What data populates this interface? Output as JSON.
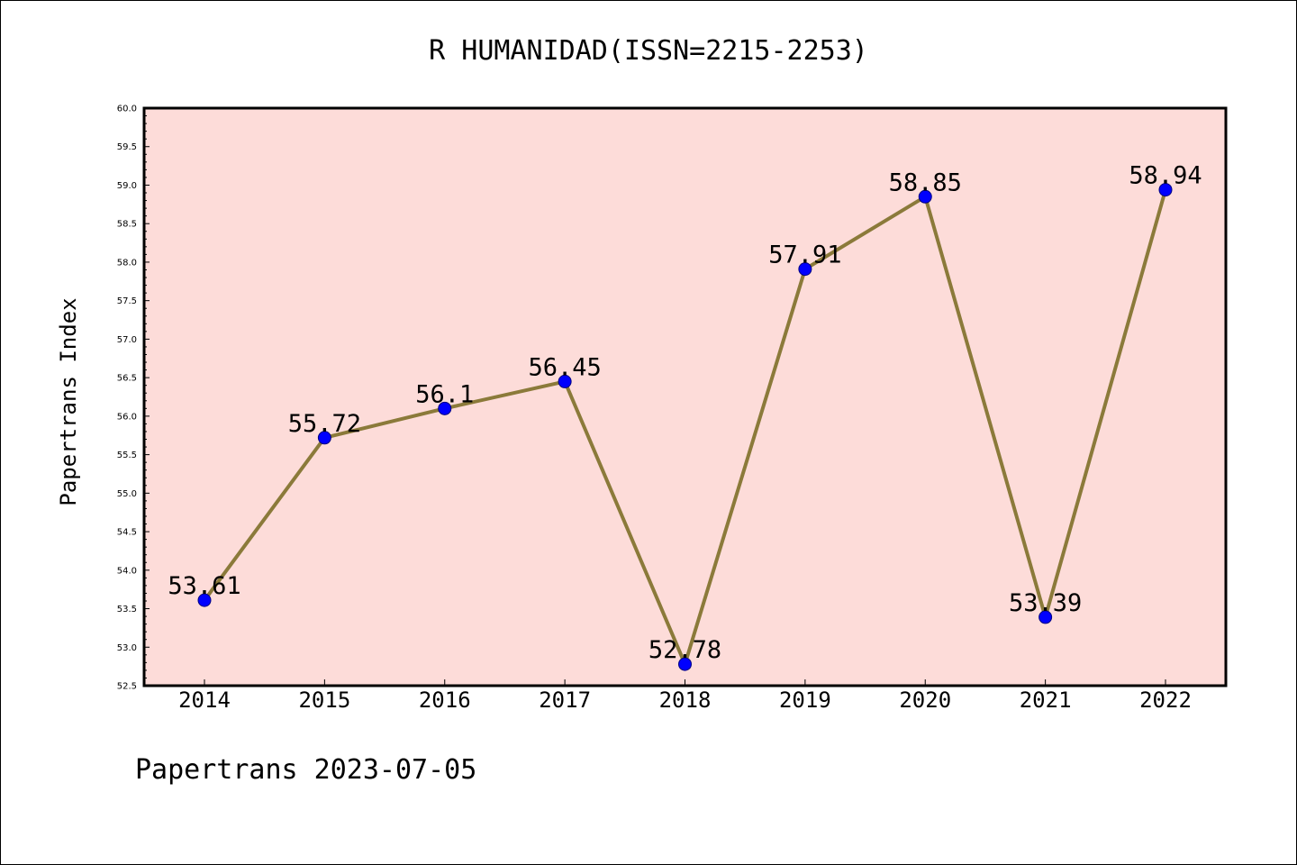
{
  "chart_data": {
    "type": "line",
    "title": "R HUMANIDAD(ISSN=2215-2253)",
    "ylabel": "Papertrans Index",
    "xlabel": "",
    "categories": [
      "2014",
      "2015",
      "2016",
      "2017",
      "2018",
      "2019",
      "2020",
      "2021",
      "2022"
    ],
    "series": [
      {
        "values": [
          53.61,
          55.72,
          56.1,
          56.45,
          52.78,
          57.91,
          58.85,
          53.39,
          58.94
        ],
        "labels": [
          "53.61",
          "55.72",
          "56.1",
          "56.45",
          "52.78",
          "57.91",
          "58.85",
          "53.39",
          "58.94"
        ],
        "line_color": "#8b7a3a",
        "marker_color": "#0000ff"
      }
    ],
    "ylim": [
      52.5,
      60.0
    ],
    "yticks": [
      "52.5",
      "53.0",
      "53.5",
      "54.0",
      "54.5",
      "55.0",
      "55.5",
      "56.0",
      "56.5",
      "57.0",
      "57.5",
      "58.0",
      "58.5",
      "59.0",
      "59.5",
      "60.0"
    ],
    "plot_background": "#fddcd9",
    "grid": false,
    "legend": "none"
  },
  "footer": "Papertrans 2023-07-05"
}
